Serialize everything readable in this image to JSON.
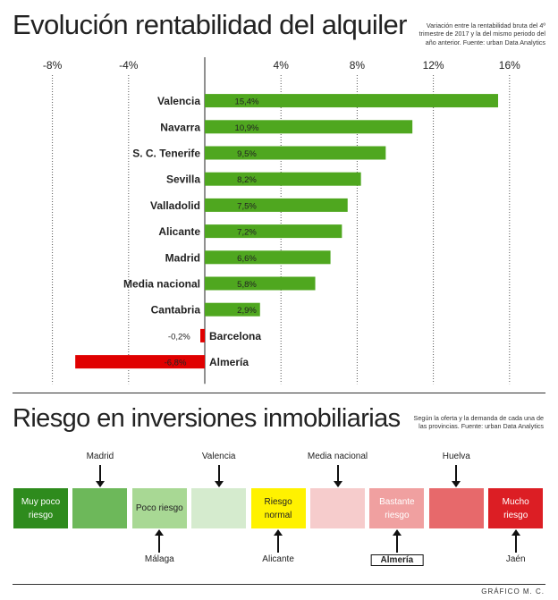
{
  "rental": {
    "title": "Evolución rentabilidad del alquiler",
    "note": "Variación entre la rentabilidad bruta del 4º trimestre de 2017 y la del mismo periodo del año anterior. Fuente: urban Data Analytics"
  },
  "colors": {
    "positive": "#4fa71f",
    "negative": "#e00000"
  },
  "chart_data": {
    "type": "bar",
    "orientation": "horizontal",
    "categories": [
      "Valencia",
      "Navarra",
      "S. C. Tenerife",
      "Sevilla",
      "Valladolid",
      "Alicante",
      "Madrid",
      "Media nacional",
      "Cantabria",
      "Barcelona",
      "Almería"
    ],
    "values": [
      15.4,
      10.9,
      9.5,
      8.2,
      7.5,
      7.2,
      6.6,
      5.8,
      2.9,
      -0.2,
      -6.8
    ],
    "value_labels": [
      "15,4%",
      "10,9%",
      "9,5%",
      "8,2%",
      "7,5%",
      "7,2%",
      "6,6%",
      "5,8%",
      "2,9%",
      "-0,2%",
      "-6,8%"
    ],
    "xlim": [
      -8,
      16
    ],
    "ticks": [
      -8,
      -4,
      4,
      8,
      12,
      16
    ],
    "tick_labels": [
      "-8%",
      "-4%",
      "4%",
      "8%",
      "12%",
      "16%"
    ],
    "grid": true
  },
  "risk": {
    "title": "Riesgo en inversiones inmobiliarias",
    "note": "Según la oferta y la demanda de cada una de las provincias. Fuente: urban Data Analytics",
    "levels": [
      {
        "label": "Muy poco riesgo",
        "color": "#2e8b1d",
        "text_color": "#ffffff"
      },
      {
        "label": "",
        "color": "#6db85a",
        "text_color": "#ffffff"
      },
      {
        "label": "Poco riesgo",
        "color": "#a8d894",
        "text_color": "#222222"
      },
      {
        "label": "",
        "color": "#d5ebce",
        "text_color": "#222222"
      },
      {
        "label": "Riesgo normal",
        "color": "#fff200",
        "text_color": "#222222"
      },
      {
        "label": "",
        "color": "#f6cccc",
        "text_color": "#222222"
      },
      {
        "label": "Bastante riesgo",
        "color": "#f0a0a0",
        "text_color": "#ffffff"
      },
      {
        "label": "",
        "color": "#e7696b",
        "text_color": "#ffffff"
      },
      {
        "label": "Mucho riesgo",
        "color": "#dc1e24",
        "text_color": "#ffffff"
      }
    ],
    "above": [
      {
        "name": "Madrid",
        "level": 1
      },
      {
        "name": "Valencia",
        "level": 3
      },
      {
        "name": "Media nacional",
        "level": 5
      },
      {
        "name": "Huelva",
        "level": 7
      }
    ],
    "below": [
      {
        "name": "Málaga",
        "level": 2,
        "highlight": false
      },
      {
        "name": "Alicante",
        "level": 4,
        "highlight": false
      },
      {
        "name": "Almería",
        "level": 6,
        "highlight": true
      },
      {
        "name": "Jaén",
        "level": 8,
        "highlight": false
      }
    ]
  },
  "footer": "GRÁFICO M. C."
}
